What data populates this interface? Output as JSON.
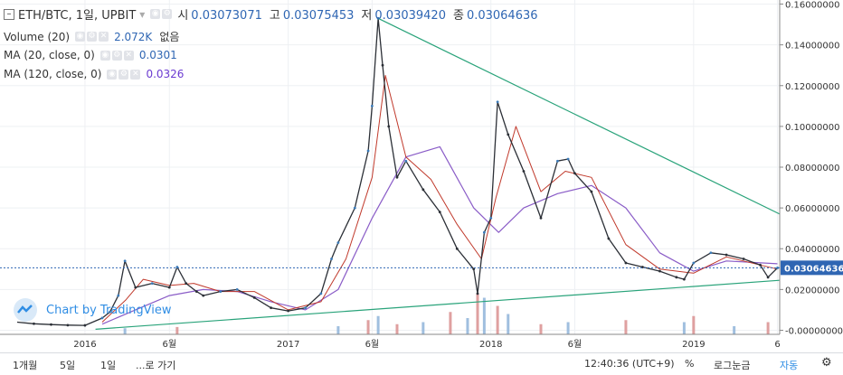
{
  "header": {
    "symbol_line": "ETH/BTC, 1일, UPBIT",
    "ohlc": [
      {
        "label": "시",
        "value": "0.03073071"
      },
      {
        "label": "고",
        "value": "0.03075453"
      },
      {
        "label": "저",
        "value": "0.03039420"
      },
      {
        "label": "종",
        "value": "0.03064636"
      }
    ],
    "volume_label": "Volume (20)",
    "volume_value": "2.072K",
    "volume_extra": "없음",
    "ma20_label": "MA (20, close, 0)",
    "ma20_value": "0.0301",
    "ma120_label": "MA (120, close, 0)",
    "ma120_value": "0.0326"
  },
  "watermark": "Chart by TradingView",
  "bottom_bar": {
    "ranges": [
      "1개월",
      "5일",
      "1일"
    ],
    "goto": "...로 가기",
    "clock": "12:40:36 (UTC+9)",
    "percent": "%",
    "log": "로그눈금",
    "auto": "자동"
  },
  "colors": {
    "up": "#3a7ab8",
    "down": "#2b2f36",
    "ma20": "#c0392b",
    "ma120": "#8a5cc7",
    "trendline": "#29a37a",
    "volume_up": "#8fb4d9",
    "volume_down": "#d98f8f",
    "price_marker": "#2f66b3"
  },
  "chart_data": {
    "type": "line",
    "title": "ETH/BTC, 1일, UPBIT",
    "ylim": [
      -0.002,
      0.162
    ],
    "y_ticks": [
      "0.16000000",
      "0.14000000",
      "0.12000000",
      "0.10000000",
      "0.08000000",
      "0.06000000",
      "0.04000000",
      "0.02000000",
      "-0.00000000"
    ],
    "y_tick_values": [
      0.16,
      0.14,
      0.12,
      0.1,
      0.08,
      0.06,
      0.04,
      0.02,
      0.0
    ],
    "x_labels": [
      "2016",
      "6월",
      "2017",
      "6월",
      "2018",
      "6월",
      "2019",
      "6"
    ],
    "x_label_dates": [
      "2016-01-01",
      "2016-06-01",
      "2017-01-01",
      "2017-06-01",
      "2018-01-01",
      "2018-06-01",
      "2019-01-01",
      "2019-06-01"
    ],
    "xlim": [
      "2015-08-01",
      "2019-06-05"
    ],
    "last_price": "0.03064636",
    "last_price_value": 0.03064636,
    "series": [
      {
        "type": "close",
        "x": [
          "2015-09-01",
          "2015-10-01",
          "2015-11-01",
          "2015-12-01",
          "2016-01-01",
          "2016-02-01",
          "2016-02-15",
          "2016-03-01",
          "2016-03-13",
          "2016-04-01",
          "2016-05-01",
          "2016-06-01",
          "2016-06-15",
          "2016-07-01",
          "2016-07-20",
          "2016-08-01",
          "2016-09-01",
          "2016-10-01",
          "2016-11-01",
          "2016-12-01",
          "2017-01-01",
          "2017-02-01",
          "2017-03-01",
          "2017-03-20",
          "2017-04-01",
          "2017-05-01",
          "2017-05-25",
          "2017-06-01",
          "2017-06-12",
          "2017-06-20",
          "2017-07-01",
          "2017-07-16",
          "2017-08-01",
          "2017-09-01",
          "2017-10-01",
          "2017-11-01",
          "2017-12-01",
          "2017-12-08",
          "2017-12-20",
          "2018-01-01",
          "2018-01-13",
          "2018-02-01",
          "2018-03-01",
          "2018-04-01",
          "2018-05-01",
          "2018-05-20",
          "2018-06-01",
          "2018-07-01",
          "2018-08-01",
          "2018-09-01",
          "2018-10-01",
          "2018-11-01",
          "2018-12-01",
          "2018-12-15",
          "2019-01-01",
          "2019-02-01",
          "2019-03-01",
          "2019-04-01",
          "2019-05-01",
          "2019-05-15",
          "2019-06-01"
        ],
        "y": [
          0.004,
          0.0032,
          0.0028,
          0.0025,
          0.0024,
          0.006,
          0.009,
          0.017,
          0.034,
          0.021,
          0.023,
          0.021,
          0.031,
          0.023,
          0.019,
          0.017,
          0.019,
          0.02,
          0.016,
          0.011,
          0.0095,
          0.011,
          0.018,
          0.035,
          0.043,
          0.06,
          0.088,
          0.11,
          0.153,
          0.13,
          0.1,
          0.075,
          0.083,
          0.069,
          0.058,
          0.04,
          0.03,
          0.018,
          0.048,
          0.055,
          0.112,
          0.096,
          0.078,
          0.055,
          0.083,
          0.084,
          0.077,
          0.068,
          0.045,
          0.033,
          0.031,
          0.029,
          0.026,
          0.025,
          0.033,
          0.038,
          0.037,
          0.035,
          0.032,
          0.026,
          0.0306
        ]
      },
      {
        "type": "MA (20, close, 0)",
        "x": [
          "2016-02-01",
          "2016-03-15",
          "2016-04-15",
          "2016-06-01",
          "2016-07-15",
          "2016-09-01",
          "2016-11-01",
          "2017-01-01",
          "2017-03-01",
          "2017-04-15",
          "2017-06-01",
          "2017-06-25",
          "2017-08-01",
          "2017-09-15",
          "2017-11-01",
          "2017-12-15",
          "2018-01-10",
          "2018-02-15",
          "2018-04-01",
          "2018-05-15",
          "2018-07-01",
          "2018-09-01",
          "2018-11-01",
          "2019-01-01",
          "2019-03-01",
          "2019-06-01"
        ],
        "y": [
          0.004,
          0.015,
          0.025,
          0.022,
          0.023,
          0.019,
          0.019,
          0.01,
          0.014,
          0.035,
          0.075,
          0.125,
          0.085,
          0.074,
          0.052,
          0.035,
          0.065,
          0.1,
          0.068,
          0.078,
          0.075,
          0.042,
          0.03,
          0.028,
          0.036,
          0.03
        ]
      },
      {
        "type": "MA (120, close, 0)",
        "x": [
          "2016-02-01",
          "2016-04-01",
          "2016-06-01",
          "2016-08-01",
          "2016-10-01",
          "2016-12-01",
          "2017-02-01",
          "2017-04-01",
          "2017-06-01",
          "2017-08-01",
          "2017-10-01",
          "2017-12-01",
          "2018-01-15",
          "2018-03-01",
          "2018-05-01",
          "2018-07-01",
          "2018-09-01",
          "2018-11-01",
          "2019-01-01",
          "2019-03-01",
          "2019-06-01"
        ],
        "y": [
          0.003,
          0.01,
          0.017,
          0.02,
          0.019,
          0.014,
          0.01,
          0.02,
          0.055,
          0.085,
          0.09,
          0.06,
          0.048,
          0.06,
          0.067,
          0.071,
          0.06,
          0.038,
          0.029,
          0.034,
          0.0326
        ]
      },
      {
        "type": "trendline_upper",
        "x": [
          "2017-06-12",
          "2019-06-05"
        ],
        "y": [
          0.153,
          0.057
        ]
      },
      {
        "type": "trendline_lower",
        "x": [
          "2016-01-20",
          "2019-06-05"
        ],
        "y": [
          0.0005,
          0.0245
        ]
      }
    ],
    "volume": {
      "x": [
        "2016-03-13",
        "2016-06-15",
        "2017-04-01",
        "2017-05-25",
        "2017-06-12",
        "2017-07-16",
        "2017-09-01",
        "2017-10-20",
        "2017-11-20",
        "2017-12-08",
        "2017-12-20",
        "2018-01-13",
        "2018-02-01",
        "2018-04-01",
        "2018-05-20",
        "2018-09-01",
        "2018-12-15",
        "2019-01-01",
        "2019-03-15",
        "2019-05-15"
      ],
      "v": [
        0.15,
        0.18,
        0.2,
        0.35,
        0.45,
        0.25,
        0.3,
        0.55,
        0.4,
        1.0,
        0.9,
        0.7,
        0.5,
        0.25,
        0.3,
        0.35,
        0.3,
        0.45,
        0.2,
        0.3
      ]
    }
  }
}
